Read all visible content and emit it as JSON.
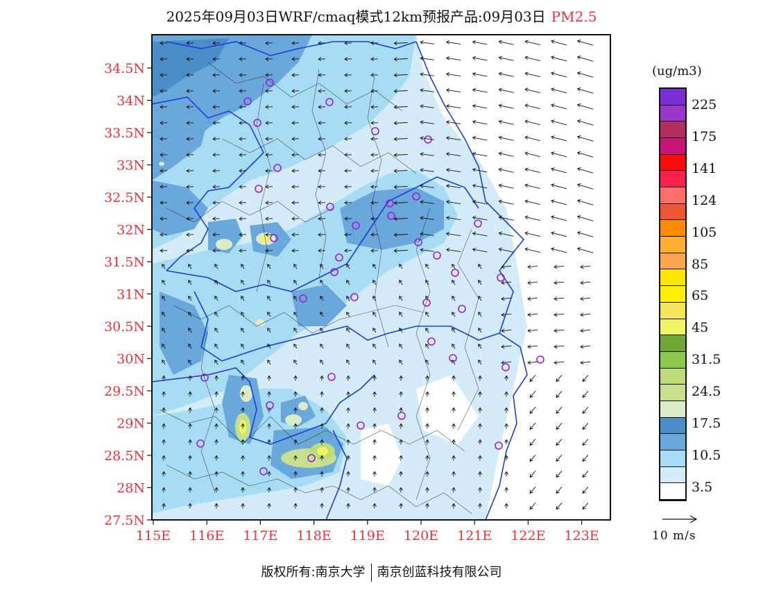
{
  "title": {
    "text": "2025年09月03日WRF/cmaq模式12km预报产品:09月03日",
    "pollutant": "PM2.5",
    "pollutant_color": "#e8323c"
  },
  "footer": {
    "left": "版权所有:南京大学",
    "right": "南京创蓝科技有限公司"
  },
  "axes": {
    "lat_labels": [
      "34.5N",
      "34N",
      "33.5N",
      "33N",
      "32.5N",
      "32N",
      "31.5N",
      "31N",
      "30.5N",
      "30N",
      "29.5N",
      "29N",
      "28.5N",
      "28N",
      "27.5N"
    ],
    "lon_labels": [
      "115E",
      "116E",
      "117E",
      "118E",
      "119E",
      "120E",
      "121E",
      "122E",
      "123E"
    ],
    "label_color": "#e8323c"
  },
  "legend": {
    "unit": "(ug/m3)",
    "labels": [
      "225",
      "175",
      "141",
      "124",
      "105",
      "85",
      "65",
      "45",
      "31.5",
      "24.5",
      "17.5",
      "10.5",
      "3.5"
    ],
    "colors_top_to_bottom": [
      "#7a2ed6",
      "#9b38cc",
      "#b02e5e",
      "#c81474",
      "#ff0a0a",
      "#ff1f4d",
      "#ff6e6e",
      "#ee5533",
      "#ff8c00",
      "#ffb030",
      "#ffa64d",
      "#ffe600",
      "#fff000",
      "#f5e55a",
      "#f0f566",
      "#6fa832",
      "#8cc84b",
      "#bedc78",
      "#c8e08e",
      "#dcebc8",
      "#4b8dc6",
      "#6aa8db",
      "#a8dcf5",
      "#d4ecfa",
      "#ffffff"
    ]
  },
  "wind_scale": {
    "label": "10 m/s"
  },
  "map": {
    "stations_icon": "station-circle-icon",
    "arrow_icon": "wind-arrow-icon"
  }
}
